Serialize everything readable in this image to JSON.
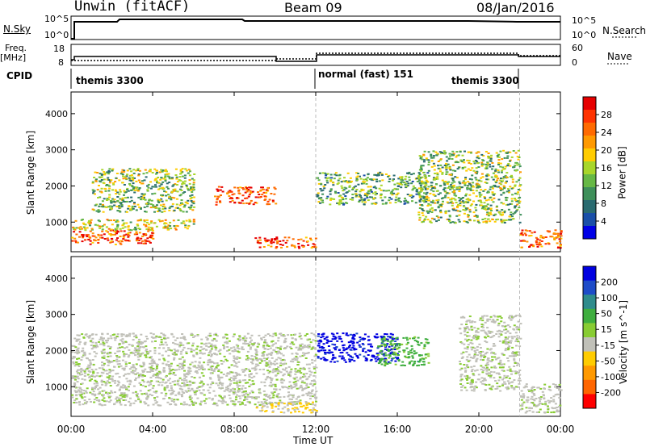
{
  "header": {
    "title": "Unwin (fitACF)",
    "beam": "Beam 09",
    "date": "08/Jan/2016"
  },
  "top_panels": {
    "nsky_label": "N.Sky",
    "nsky_ticks": [
      "10^5",
      "10^0"
    ],
    "nsearch_label": "N.Search",
    "nsearch_ticks": [
      "10^5",
      "10^0"
    ],
    "freq_label_1": "Freq.",
    "freq_label_2": "[MHz]",
    "freq_ticks": [
      "18",
      "8"
    ],
    "nave_label": "Nave",
    "nave_ticks": [
      "60",
      "0"
    ],
    "cpid_label": "CPID",
    "cpid_segments": [
      "themis 3300",
      "normal (fast) 151",
      "themis 3300"
    ]
  },
  "axes": {
    "ylabel": "Slant Range [km]",
    "xlabel": "Time UT",
    "y_ticks": [
      "4000",
      "3000",
      "2000",
      "1000"
    ],
    "x_ticks": [
      "00:00",
      "04:00",
      "08:00",
      "12:00",
      "16:00",
      "20:00",
      "00:00"
    ]
  },
  "colorbars": {
    "power": {
      "label": "Power [dB]",
      "ticks": [
        "28",
        "24",
        "20",
        "16",
        "12",
        "8",
        "4"
      ],
      "colors": [
        "#e60000",
        "#ff3300",
        "#ff6a00",
        "#ff9900",
        "#ffcc00",
        "#a8d62a",
        "#66b845",
        "#3e8f5a",
        "#2a6b70",
        "#1a4fa8",
        "#0000e6"
      ]
    },
    "velocity": {
      "label": "Velocity [m s^-1]",
      "ticks": [
        "200",
        "100",
        "50",
        "15",
        "-15",
        "-50",
        "-100",
        "-200"
      ],
      "colors": [
        "#0000e0",
        "#1e4cc8",
        "#2f8c8c",
        "#3fae3f",
        "#88cc33",
        "#c0c0b8",
        "#ffcc00",
        "#ff9900",
        "#ff6600",
        "#ff0000"
      ]
    }
  },
  "chart_data": [
    {
      "type": "heatmap",
      "title": "Power [dB]",
      "xlabel": "Time UT",
      "ylabel": "Slant Range [km]",
      "xlim": [
        0,
        24
      ],
      "ylim": [
        180,
        4600
      ],
      "colorbar": {
        "label": "Power [dB]",
        "range": [
          0,
          32
        ]
      },
      "regions": [
        {
          "t": [
            0,
            4
          ],
          "r": [
            400,
            800
          ],
          "value": 28
        },
        {
          "t": [
            0,
            6
          ],
          "r": [
            800,
            1100
          ],
          "value": 18
        },
        {
          "t": [
            1,
            6
          ],
          "r": [
            1300,
            2500
          ],
          "value": 14
        },
        {
          "t": [
            7,
            10
          ],
          "r": [
            1500,
            2000
          ],
          "value": 28
        },
        {
          "t": [
            9,
            12
          ],
          "r": [
            300,
            600
          ],
          "value": 28
        },
        {
          "t": [
            12,
            17.5
          ],
          "r": [
            1500,
            2400
          ],
          "value": 12
        },
        {
          "t": [
            17,
            22
          ],
          "r": [
            1000,
            3000
          ],
          "value": 14
        },
        {
          "t": [
            22,
            24
          ],
          "r": [
            300,
            800
          ],
          "value": 26
        }
      ]
    },
    {
      "type": "heatmap",
      "title": "Velocity [m s^-1]",
      "xlabel": "Time UT",
      "ylabel": "Slant Range [km]",
      "xlim": [
        0,
        24
      ],
      "ylim": [
        180,
        4600
      ],
      "colorbar": {
        "label": "Velocity [m s^-1]",
        "range": [
          -200,
          200
        ]
      },
      "regions": [
        {
          "t": [
            0,
            12
          ],
          "r": [
            500,
            2500
          ],
          "value": 0
        },
        {
          "t": [
            9,
            12
          ],
          "r": [
            300,
            600
          ],
          "value": -50
        },
        {
          "t": [
            12,
            16
          ],
          "r": [
            1700,
            2500
          ],
          "value": 200
        },
        {
          "t": [
            15,
            17.5
          ],
          "r": [
            1600,
            2400
          ],
          "value": 60
        },
        {
          "t": [
            19,
            22
          ],
          "r": [
            900,
            3000
          ],
          "value": 0
        },
        {
          "t": [
            22,
            24
          ],
          "r": [
            300,
            1100
          ],
          "value": 0
        }
      ]
    }
  ]
}
